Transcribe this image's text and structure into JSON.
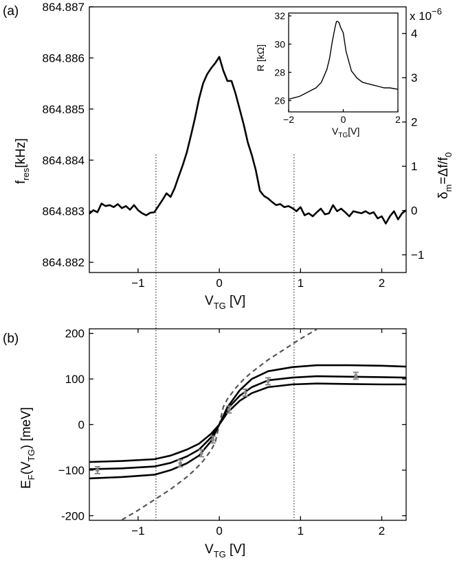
{
  "chart_data": [
    {
      "panel": "(a)",
      "type": "line",
      "xlabel": "V",
      "xlabel_sub": "TG",
      "xlabel_unit": " [V]",
      "ylabel": "f",
      "ylabel_sub": "res",
      "ylabel_unit": "[kHz]",
      "y2label_pre": "δ",
      "y2label_sub": "m",
      "y2label_post": "=Δf/f",
      "y2label_sub2": "0",
      "y2_exponent_text": "x 10",
      "y2_exponent_power": "−6",
      "xlim": [
        -1.6,
        2.3
      ],
      "ylim": [
        864.8818,
        864.887
      ],
      "y2lim": [
        -1.4,
        4.6
      ],
      "xticks": [
        -1,
        0,
        1,
        2
      ],
      "xtick_labels": [
        "−1",
        "0",
        "1",
        "2"
      ],
      "yticks": [
        864.882,
        864.883,
        864.884,
        864.885,
        864.886,
        864.887
      ],
      "ytick_labels": [
        "864.882",
        "864.883",
        "864.884",
        "864.885",
        "864.886",
        "864.887"
      ],
      "y2ticks": [
        -1,
        0,
        1,
        2,
        3,
        4
      ],
      "y2tick_labels": [
        "−1",
        "0",
        "1",
        "2",
        "3",
        "4"
      ],
      "x": [
        -1.6,
        -1.55,
        -1.5,
        -1.45,
        -1.4,
        -1.35,
        -1.3,
        -1.25,
        -1.2,
        -1.15,
        -1.1,
        -1.05,
        -1.0,
        -0.95,
        -0.9,
        -0.85,
        -0.8,
        -0.75,
        -0.7,
        -0.65,
        -0.6,
        -0.55,
        -0.5,
        -0.45,
        -0.4,
        -0.35,
        -0.3,
        -0.25,
        -0.2,
        -0.15,
        -0.1,
        -0.05,
        0.0,
        0.05,
        0.1,
        0.15,
        0.2,
        0.25,
        0.3,
        0.35,
        0.4,
        0.45,
        0.5,
        0.55,
        0.6,
        0.65,
        0.7,
        0.75,
        0.8,
        0.85,
        0.9,
        0.95,
        1.0,
        1.05,
        1.1,
        1.15,
        1.2,
        1.25,
        1.3,
        1.35,
        1.4,
        1.45,
        1.5,
        1.55,
        1.6,
        1.65,
        1.7,
        1.75,
        1.8,
        1.85,
        1.9,
        1.95,
        2.0,
        2.05,
        2.1,
        2.15,
        2.2,
        2.25,
        2.3
      ],
      "y": [
        864.88295,
        864.88302,
        864.88298,
        864.88315,
        864.8831,
        864.88312,
        864.88308,
        864.88314,
        864.88306,
        864.8831,
        864.88303,
        864.88312,
        864.88302,
        864.88296,
        864.88292,
        864.88297,
        864.88298,
        864.8831,
        864.88322,
        864.88335,
        864.88328,
        864.88345,
        864.88368,
        864.8839,
        864.88415,
        864.88448,
        864.88482,
        864.8852,
        864.8855,
        864.88568,
        864.8858,
        864.8859,
        864.88602,
        864.88575,
        864.88555,
        864.88555,
        864.8853,
        864.885,
        864.8847,
        864.88435,
        864.8841,
        864.8838,
        864.8834,
        864.8833,
        864.88325,
        864.88318,
        864.88312,
        864.88314,
        864.88308,
        864.8831,
        864.88306,
        864.883,
        864.88308,
        864.88292,
        864.88296,
        864.8829,
        864.88298,
        864.88305,
        864.88294,
        864.88296,
        864.88312,
        864.883,
        864.88305,
        864.88298,
        864.8829,
        864.883,
        864.88298,
        864.88296,
        864.883,
        864.88295,
        864.88298,
        864.88286,
        864.8829,
        864.88276,
        864.8829,
        864.883,
        864.88284,
        864.88296,
        864.88302
      ],
      "vlines": [
        -0.78,
        0.92
      ]
    },
    {
      "panel": "(a) inset",
      "type": "line",
      "xlabel": "V",
      "xlabel_sub": "TG",
      "xlabel_unit": "[V]",
      "ylabel": "R [kΩ]",
      "xlim": [
        -2,
        2
      ],
      "ylim": [
        25.2,
        32.2
      ],
      "xticks": [
        -2,
        0,
        2
      ],
      "xtick_labels": [
        "−2",
        "0",
        "2"
      ],
      "yticks": [
        26,
        28,
        30,
        32
      ],
      "ytick_labels": [
        "26",
        "28",
        "30",
        "32"
      ],
      "x": [
        -2.0,
        -1.8,
        -1.6,
        -1.4,
        -1.2,
        -1.0,
        -0.8,
        -0.6,
        -0.5,
        -0.4,
        -0.3,
        -0.25,
        -0.2,
        -0.15,
        -0.1,
        0.0,
        0.1,
        0.2,
        0.3,
        0.5,
        0.7,
        0.9,
        1.1,
        1.3,
        1.5,
        1.7,
        2.0
      ],
      "y": [
        26.1,
        26.2,
        26.3,
        26.5,
        26.7,
        26.9,
        27.3,
        28.2,
        29.0,
        30.2,
        31.2,
        31.6,
        31.6,
        31.5,
        31.2,
        30.8,
        29.5,
        28.8,
        28.1,
        27.6,
        27.3,
        27.2,
        27.1,
        27.0,
        26.9,
        26.9,
        26.8
      ]
    },
    {
      "panel": "(b)",
      "type": "line",
      "xlabel": "V",
      "xlabel_sub": "TG",
      "xlabel_unit": " [V]",
      "ylabel": "E",
      "ylabel_sub": "F",
      "ylabel_mid": "(V",
      "ylabel_sub2": "TG",
      "ylabel_unit": ") [meV]",
      "xlim": [
        -1.6,
        2.3
      ],
      "ylim": [
        -210,
        210
      ],
      "xticks": [
        -1,
        0,
        1,
        2
      ],
      "xtick_labels": [
        "−1",
        "0",
        "1",
        "2"
      ],
      "yticks": [
        -200,
        -100,
        0,
        100,
        200
      ],
      "ytick_labels": [
        "-200",
        "−100",
        "0",
        "100",
        "200"
      ],
      "series": [
        {
          "name": "upper",
          "x": [
            -1.6,
            -1.2,
            -0.8,
            -0.6,
            -0.4,
            -0.25,
            -0.1,
            0.0,
            0.1,
            0.25,
            0.4,
            0.6,
            0.9,
            1.2,
            1.6,
            2.0,
            2.3
          ],
          "y": [
            -82,
            -80,
            -76,
            -68,
            -55,
            -42,
            -20,
            0,
            38,
            75,
            100,
            117,
            126,
            130,
            130,
            129,
            127
          ]
        },
        {
          "name": "middle",
          "x": [
            -1.6,
            -1.2,
            -0.8,
            -0.6,
            -0.4,
            -0.25,
            -0.1,
            0.0,
            0.1,
            0.25,
            0.4,
            0.6,
            0.9,
            1.2,
            1.6,
            2.0,
            2.3
          ],
          "y": [
            -98,
            -96,
            -92,
            -84,
            -70,
            -55,
            -28,
            0,
            34,
            63,
            82,
            97,
            103,
            106,
            105,
            104,
            103
          ]
        },
        {
          "name": "lower",
          "x": [
            -1.6,
            -1.2,
            -0.8,
            -0.6,
            -0.4,
            -0.25,
            -0.1,
            0.0,
            0.1,
            0.25,
            0.4,
            0.6,
            0.9,
            1.2,
            1.6,
            2.0,
            2.3
          ],
          "y": [
            -118,
            -115,
            -110,
            -100,
            -85,
            -68,
            -36,
            0,
            26,
            52,
            69,
            82,
            88,
            90,
            89,
            88,
            88
          ]
        }
      ],
      "dashed_curve": {
        "x": [
          -1.2,
          -1.0,
          -0.8,
          -0.6,
          -0.4,
          -0.3,
          -0.2,
          -0.1,
          -0.05,
          0.0,
          0.05,
          0.1,
          0.2,
          0.3,
          0.4,
          0.6,
          0.8,
          1.0,
          1.2
        ],
        "y": [
          -209,
          -188,
          -165,
          -142,
          -115,
          -99,
          -80,
          -56,
          -39,
          0,
          39,
          56,
          80,
          99,
          115,
          142,
          165,
          188,
          209
        ]
      },
      "error_points": [
        {
          "x": -1.5,
          "y": -100
        },
        {
          "x": -0.48,
          "y": -85
        },
        {
          "x": -0.22,
          "y": -63
        },
        {
          "x": -0.08,
          "y": -33
        },
        {
          "x": 0.12,
          "y": 33
        },
        {
          "x": 0.32,
          "y": 70
        },
        {
          "x": 0.6,
          "y": 95
        },
        {
          "x": 1.68,
          "y": 107
        }
      ],
      "vlines": [
        -0.78,
        0.92
      ]
    }
  ]
}
